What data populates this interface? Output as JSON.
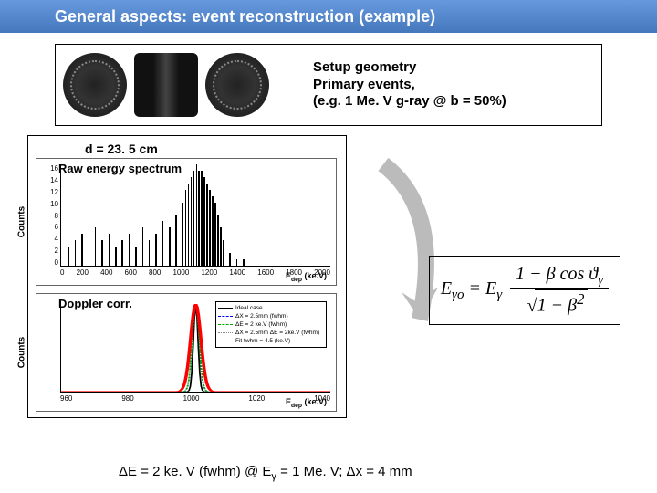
{
  "title": "General aspects: event reconstruction (example)",
  "setup": {
    "line1": "Setup geometry",
    "line2": "Primary events,",
    "line3": "(e.g. 1 Me. V g-ray @ b = 50%)"
  },
  "spectra": {
    "d_label": "d = 23. 5 cm",
    "chart1": {
      "title": "Raw energy spectrum",
      "ylabel": "Counts",
      "xlabel": "E_dep (ke.V)",
      "xticks": [
        "0",
        "200",
        "400",
        "600",
        "800",
        "1000",
        "1200",
        "1400",
        "1600",
        "1800",
        "2000"
      ],
      "yticks": [
        "16",
        "14",
        "12",
        "10",
        "8",
        "6",
        "4",
        "2",
        "0"
      ],
      "xlim": [
        0,
        2000
      ],
      "ylim": [
        0,
        16
      ],
      "hist_data": [
        [
          50,
          3
        ],
        [
          100,
          4
        ],
        [
          150,
          5
        ],
        [
          200,
          3
        ],
        [
          250,
          6
        ],
        [
          300,
          4
        ],
        [
          350,
          5
        ],
        [
          400,
          3
        ],
        [
          450,
          4
        ],
        [
          500,
          5
        ],
        [
          550,
          3
        ],
        [
          600,
          6
        ],
        [
          650,
          4
        ],
        [
          700,
          5
        ],
        [
          750,
          7
        ],
        [
          800,
          6
        ],
        [
          850,
          8
        ],
        [
          900,
          10
        ],
        [
          920,
          12
        ],
        [
          940,
          13
        ],
        [
          960,
          14
        ],
        [
          980,
          15
        ],
        [
          1000,
          16
        ],
        [
          1020,
          15
        ],
        [
          1040,
          15
        ],
        [
          1060,
          14
        ],
        [
          1080,
          13
        ],
        [
          1100,
          12
        ],
        [
          1120,
          11
        ],
        [
          1140,
          10
        ],
        [
          1160,
          8
        ],
        [
          1180,
          6
        ],
        [
          1200,
          4
        ],
        [
          1250,
          2
        ],
        [
          1300,
          1
        ],
        [
          1350,
          1
        ],
        [
          1400,
          0
        ]
      ],
      "bar_color": "#000000",
      "background_color": "#ffffff"
    },
    "chart2": {
      "title": "Doppler corr.",
      "ylabel": "Counts",
      "xlabel": "E_dep (ke.V)",
      "xticks": [
        "960",
        "980",
        "1000",
        "1020",
        "1040"
      ],
      "yticks": [
        "",
        "",
        "",
        "",
        ""
      ],
      "xlim": [
        950,
        1050
      ],
      "ylim": [
        0,
        100
      ],
      "peak_center": 1000,
      "peaks": [
        {
          "color": "#000000",
          "width": 1,
          "style": "solid",
          "fwhm": 2
        },
        {
          "color": "#0000ff",
          "width": 1,
          "style": "dashed",
          "fwhm": 3
        },
        {
          "color": "#00aa00",
          "width": 1,
          "style": "dashed",
          "fwhm": 3
        },
        {
          "color": "#ff0000",
          "width": 2,
          "style": "solid",
          "fwhm": 4.5
        }
      ],
      "legend": [
        {
          "label": "Ideal case",
          "color": "#000000",
          "style": "solid"
        },
        {
          "label": "ΔX = 2.5mm (fwhm)",
          "color": "#0000ff",
          "style": "dashed"
        },
        {
          "label": "ΔE = 2 ke.V (fwhm)",
          "color": "#00aa00",
          "style": "dashed"
        },
        {
          "label": "ΔX = 2.5mm ΔE = 2ke.V (fwhm)",
          "color": "#888888",
          "style": "dotted"
        },
        {
          "label": "Fit fwhm = 4.5 (ke.V)",
          "color": "#ff0000",
          "style": "solid"
        }
      ],
      "background_color": "#ffffff"
    }
  },
  "formula": {
    "lhs": "E",
    "lhs_sub": "γo",
    "eq": " = E",
    "rhs_sub": "γ",
    "num": "1 − β cos ϑ",
    "num_sub": "γ",
    "den": "1 − β",
    "den_sup": "2"
  },
  "bottom": {
    "text1": "ΔE = 2 ke. V (fwhm)  @ E",
    "text2": " = 1 Me. V;   Δx = 4 mm",
    "sub": "γ"
  },
  "colors": {
    "title_gradient_top": "#6699dd",
    "title_gradient_bottom": "#4477bb",
    "border": "#000000",
    "arrow": "#bbbbbb"
  }
}
